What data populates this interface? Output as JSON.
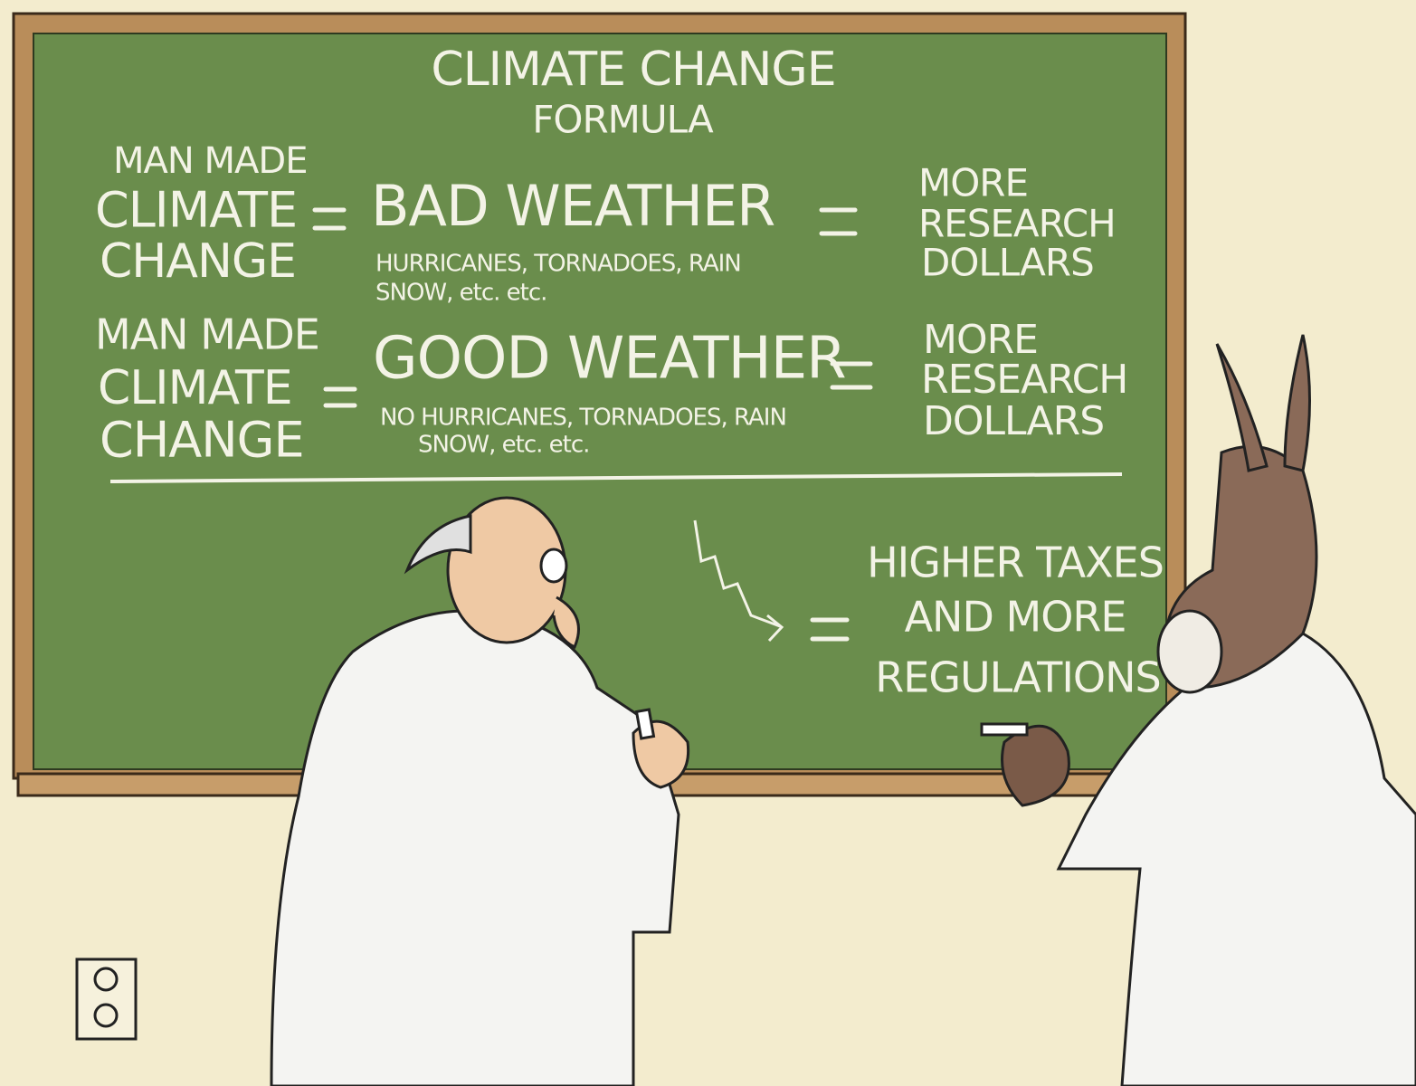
{
  "board": {
    "title": [
      "CLIMATE CHANGE",
      "FORMULA"
    ],
    "rows": [
      {
        "cause": [
          "MAN MADE",
          "CLIMATE",
          "CHANGE"
        ],
        "effect": "BAD WEATHER",
        "examples": [
          "HURRICANES, TORNADOES, RAIN",
          "SNOW, etc. etc."
        ],
        "result": [
          "MORE",
          "RESEARCH",
          "DOLLARS"
        ]
      },
      {
        "cause": [
          "MAN MADE",
          "CLIMATE",
          "CHANGE"
        ],
        "effect": "GOOD WEATHER",
        "examples": [
          "NO HURRICANES, TORNADOES, RAIN",
          "SNOW, etc. etc."
        ],
        "result": [
          "MORE",
          "RESEARCH",
          "DOLLARS"
        ]
      }
    ],
    "conclusion": [
      "HIGHER TAXES",
      "AND MORE",
      "REGULATIONS"
    ]
  }
}
